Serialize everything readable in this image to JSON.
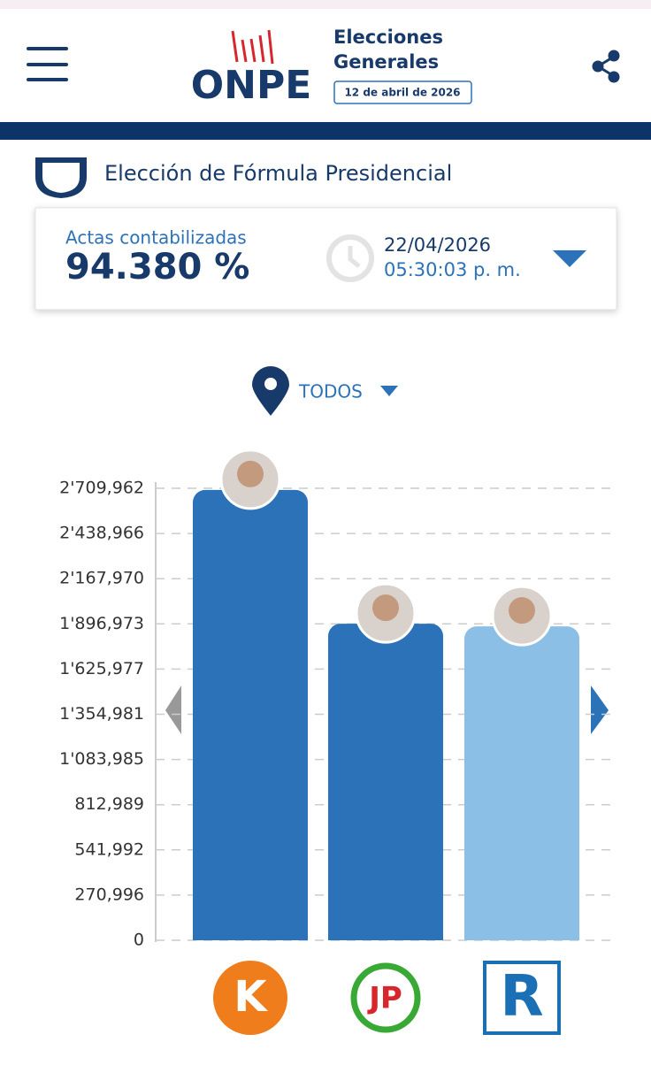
{
  "header": {
    "logo": "ONPE",
    "title_line1": "Elecciones",
    "title_line2": "Generales",
    "date": "12 de abril de 2026"
  },
  "section_title": "Elección de Fórmula Presidencial",
  "summary": {
    "label": "Actas contabilizadas",
    "percent": "94.380 %",
    "date": "22/04/2026",
    "time": "05:30:03 p. m."
  },
  "filter": "TODOS",
  "parties": [
    "K",
    "JP",
    "R"
  ],
  "chart_data": {
    "type": "bar",
    "categories": [
      null,
      null,
      null
    ],
    "values": [
      2700000,
      1898000,
      1882000
    ],
    "colors": [
      "#2b72b9",
      "#2b72b9",
      "#8bbfe6"
    ],
    "ylim": [
      0,
      2709962
    ],
    "yticks": [
      0,
      {
        "value": 270996,
        "label": "270,996"
      },
      {
        "value": 541992,
        "label": "541,992"
      },
      {
        "value": 812989,
        "label": "812,989"
      },
      {
        "value": 1083985,
        "label": "1'083,985"
      },
      {
        "value": 1354981,
        "label": "1'354,981"
      },
      {
        "value": 1625977,
        "label": "1'625,977"
      },
      {
        "value": 1896973,
        "label": "1'896,973"
      },
      {
        "value": 2167970,
        "label": "2'167,970"
      },
      {
        "value": 2438966,
        "label": "2'438,966"
      },
      {
        "value": 2709962,
        "label": "2'709,962"
      }
    ],
    "grid": true
  }
}
